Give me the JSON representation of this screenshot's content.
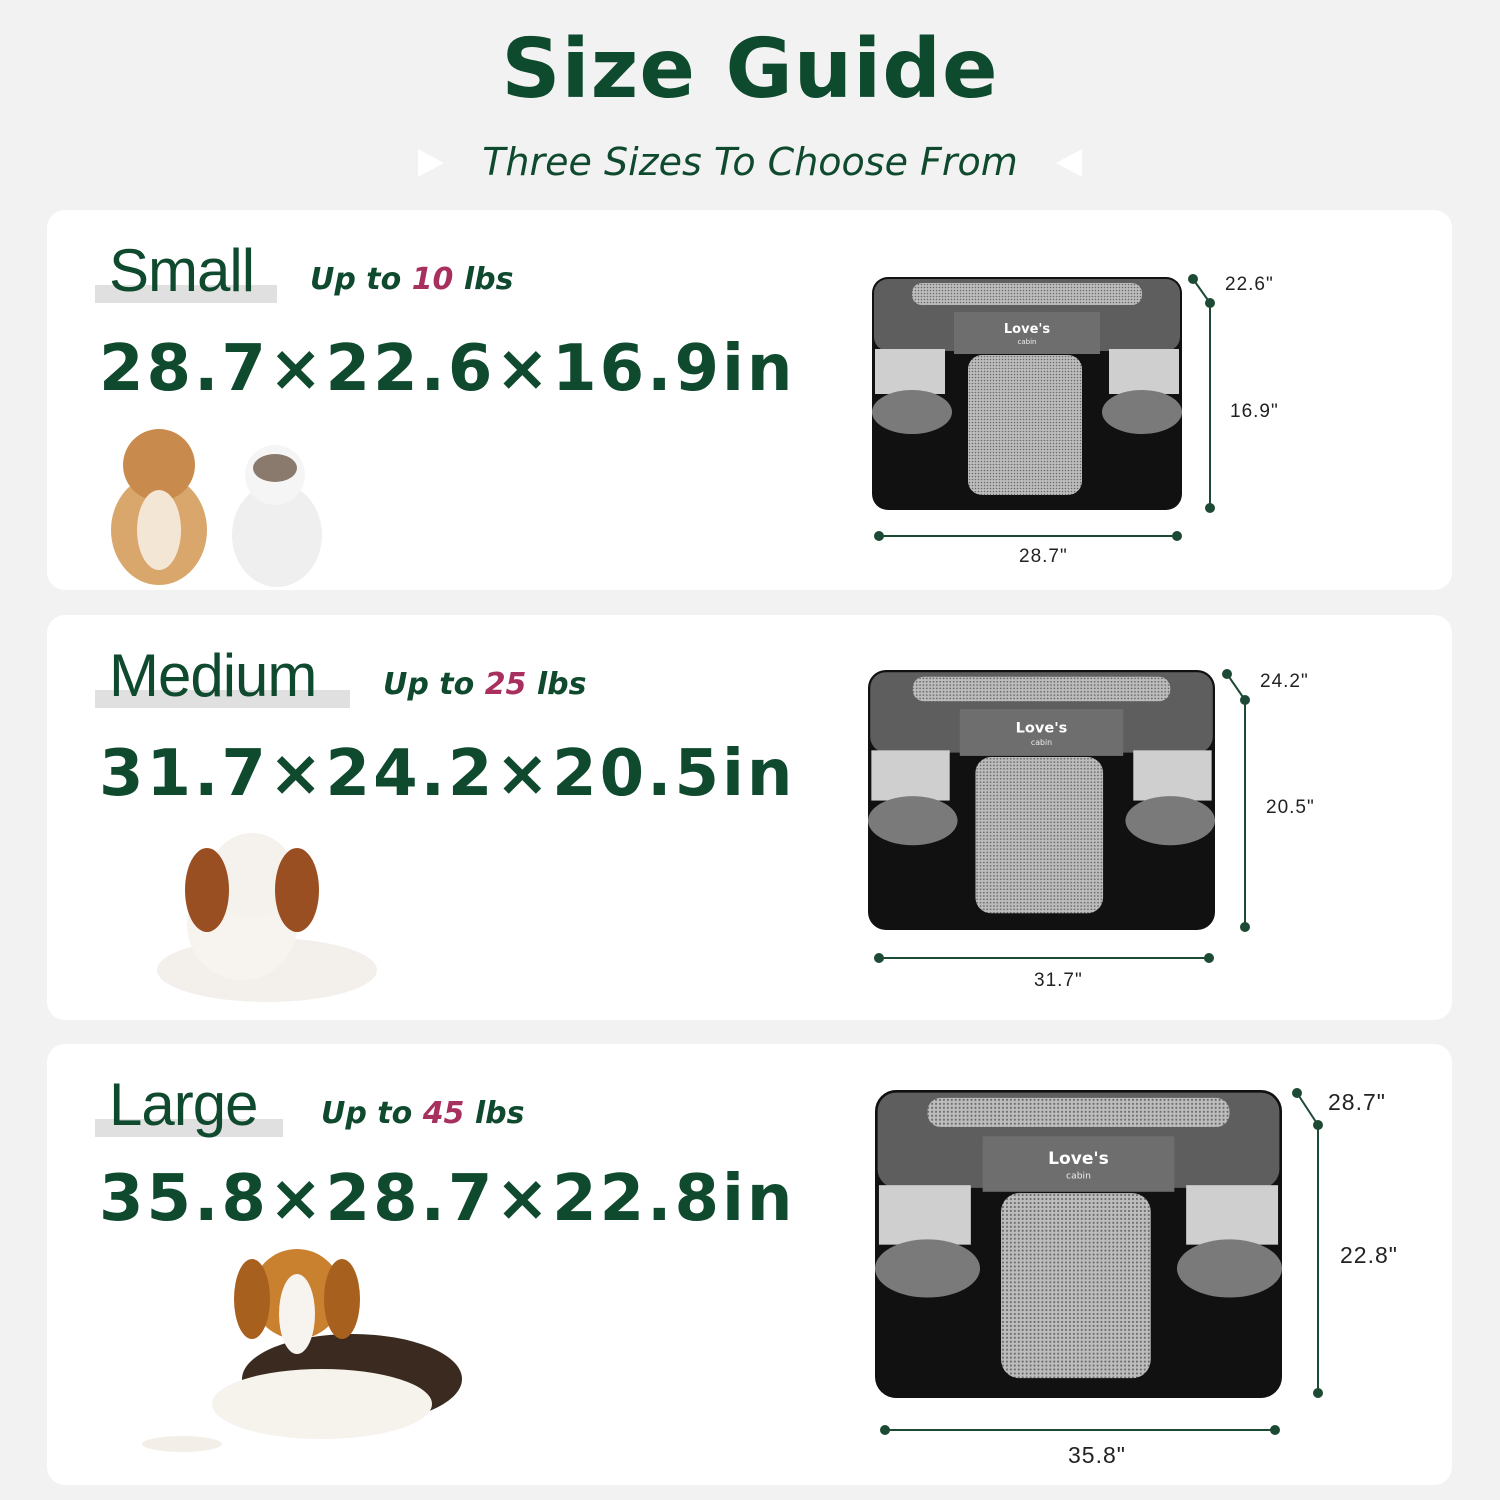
{
  "header": {
    "title": "Size Guide",
    "subtitle": "Three Sizes To Choose From"
  },
  "colors": {
    "brand_green": "#0f4a2f",
    "accent_magenta": "#a8305f",
    "background": "#f2f2f2"
  },
  "sizes": [
    {
      "name": "Small",
      "weight_prefix": "Up to",
      "weight_value": "10",
      "weight_unit": "lbs",
      "dimensions": "28.7×22.6×16.9in",
      "width_label": "28.7\"",
      "depth_label": "22.6\"",
      "height_label": "16.9\"",
      "pets": "small dog and cat"
    },
    {
      "name": "Medium",
      "weight_prefix": "Up to",
      "weight_value": "25",
      "weight_unit": "lbs",
      "dimensions": "31.7×24.2×20.5in",
      "width_label": "31.7\"",
      "depth_label": "24.2\"",
      "height_label": "20.5\"",
      "pets": "spaniel"
    },
    {
      "name": "Large",
      "weight_prefix": "Up to",
      "weight_value": "45",
      "weight_unit": "lbs",
      "dimensions": "35.8×28.7×22.8in",
      "width_label": "35.8\"",
      "depth_label": "28.7\"",
      "height_label": "22.8\"",
      "pets": "beagle"
    }
  ],
  "product": {
    "brand": "Love's",
    "brand_sub": "cabin"
  }
}
